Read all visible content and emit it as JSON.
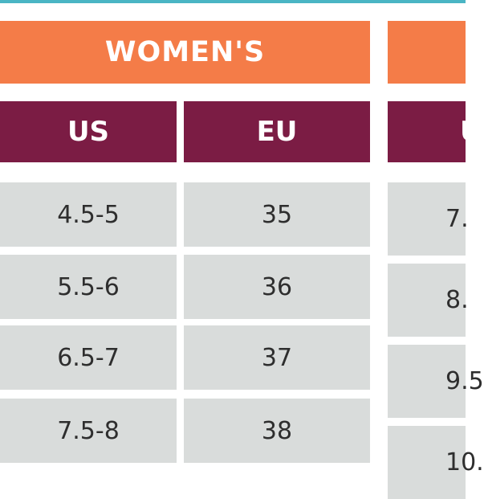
{
  "colors": {
    "top_line": "#4ab5c4",
    "header": "#f47c48",
    "subheader": "#7b1c44",
    "cell": "#d9dcdb"
  },
  "womens": {
    "title": "WOMEN'S",
    "columns": [
      "US",
      "EU"
    ],
    "rows": [
      [
        "4.5-5",
        "35"
      ],
      [
        "5.5-6",
        "36"
      ],
      [
        "6.5-7",
        "37"
      ],
      [
        "7.5-8",
        "38"
      ]
    ]
  },
  "second_table": {
    "column_fragment": "U",
    "cells": [
      "7.",
      "8.",
      "9.5",
      "10."
    ]
  }
}
